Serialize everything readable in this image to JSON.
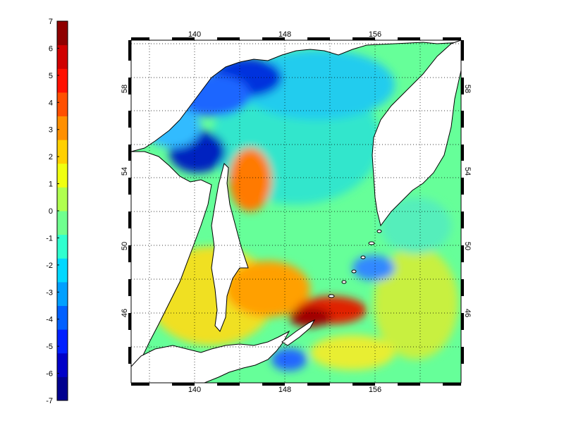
{
  "colorbar": {
    "labels": [
      "7",
      "6",
      "5",
      "4",
      "3",
      "2",
      "1",
      "0",
      "-1",
      "-2",
      "-3",
      "-4",
      "-5",
      "-6",
      "-7"
    ],
    "min": -7,
    "max": 7,
    "colors": [
      "#00008f",
      "#0000c8",
      "#0020ff",
      "#0060ff",
      "#00a0ff",
      "#00d8ff",
      "#30ffcf",
      "#70ff8f",
      "#b0ff4f",
      "#f0ff10",
      "#ffd000",
      "#ff9000",
      "#ff5000",
      "#ff1000",
      "#d00000",
      "#8f0000"
    ]
  },
  "map": {
    "top_lon_labels": [
      "140",
      "148",
      "156"
    ],
    "bottom_lon_labels": [
      "140",
      "148",
      "156"
    ],
    "left_lat_labels": [
      "58",
      "54",
      "50",
      "46"
    ],
    "right_lat_labels": [
      "58",
      "54",
      "50",
      "46"
    ],
    "lon_range": [
      134,
      163
    ],
    "lat_range": [
      42,
      60
    ],
    "grid": "dotted",
    "land_color": "#ffffff",
    "coast_color": "#000000"
  }
}
